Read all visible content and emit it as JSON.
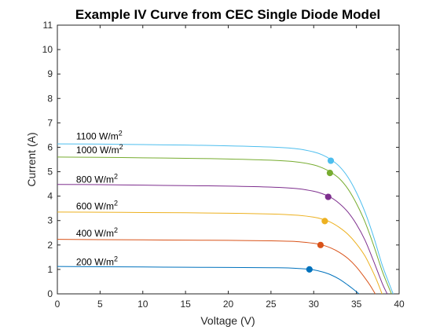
{
  "chart_data": {
    "type": "line",
    "title": "Example IV Curve from CEC Single Diode Model",
    "xlabel": "Voltage (V)",
    "ylabel": "Current (A)",
    "xlim": [
      0,
      40
    ],
    "ylim": [
      0,
      11
    ],
    "x_ticks": [
      "0",
      "5",
      "10",
      "15",
      "20",
      "25",
      "30",
      "35",
      "40"
    ],
    "y_ticks": [
      "0",
      "1",
      "2",
      "3",
      "4",
      "5",
      "6",
      "7",
      "8",
      "9",
      "10",
      "11"
    ],
    "grid": false,
    "series": [
      {
        "color": "#0072BD",
        "isc": 1.12,
        "voc": 35.3,
        "x": [
          0,
          5,
          10,
          15,
          20,
          25,
          27,
          29,
          30,
          31,
          32,
          33,
          34,
          34.6,
          35.3
        ],
        "y": [
          1.12,
          1.11,
          1.1,
          1.09,
          1.08,
          1.07,
          1.06,
          1.02,
          0.98,
          0.9,
          0.78,
          0.6,
          0.36,
          0.2,
          0
        ],
        "mpp": {
          "v": 29.5,
          "i": 1.0
        },
        "annotation": {
          "label": "200 W/m",
          "sup": "2",
          "x": 2.2,
          "y": 1.18
        }
      },
      {
        "color": "#D95319",
        "isc": 2.23,
        "voc": 37.2,
        "x": [
          0,
          5,
          10,
          15,
          20,
          25,
          28,
          30,
          31,
          32,
          33,
          34,
          35,
          36,
          36.6,
          37.2
        ],
        "y": [
          2.23,
          2.22,
          2.21,
          2.2,
          2.19,
          2.17,
          2.14,
          2.07,
          2.0,
          1.88,
          1.7,
          1.45,
          1.1,
          0.65,
          0.35,
          0
        ],
        "mpp": {
          "v": 30.8,
          "i": 2.0
        },
        "annotation": {
          "label": "400 W/m",
          "sup": "2",
          "x": 2.2,
          "y": 2.35
        }
      },
      {
        "color": "#EDB120",
        "isc": 3.35,
        "voc": 38.0,
        "x": [
          0,
          5,
          10,
          15,
          20,
          25,
          28,
          30,
          31,
          32,
          33,
          34,
          35,
          36,
          37,
          37.5,
          38.0
        ],
        "y": [
          3.35,
          3.34,
          3.33,
          3.32,
          3.3,
          3.27,
          3.22,
          3.14,
          3.06,
          2.93,
          2.72,
          2.44,
          2.05,
          1.55,
          0.85,
          0.45,
          0
        ],
        "mpp": {
          "v": 31.3,
          "i": 2.98
        },
        "annotation": {
          "label": "600 W/m",
          "sup": "2",
          "x": 2.2,
          "y": 3.45
        }
      },
      {
        "color": "#7E2F8E",
        "isc": 4.48,
        "voc": 38.6,
        "x": [
          0,
          5,
          10,
          15,
          20,
          25,
          28,
          30,
          31,
          32,
          33,
          34,
          35,
          36,
          37,
          38,
          38.6
        ],
        "y": [
          4.48,
          4.47,
          4.45,
          4.43,
          4.41,
          4.37,
          4.31,
          4.2,
          4.1,
          3.95,
          3.7,
          3.35,
          2.85,
          2.2,
          1.35,
          0.45,
          0
        ],
        "mpp": {
          "v": 31.7,
          "i": 3.97
        },
        "annotation": {
          "label": "800 W/m",
          "sup": "2",
          "x": 2.2,
          "y": 4.55
        }
      },
      {
        "color": "#77AC30",
        "isc": 5.6,
        "voc": 39.1,
        "x": [
          0,
          5,
          10,
          15,
          20,
          25,
          28,
          30,
          31,
          32,
          33,
          34,
          35,
          36,
          37,
          38,
          38.6,
          39.1
        ],
        "y": [
          5.6,
          5.59,
          5.57,
          5.55,
          5.52,
          5.47,
          5.4,
          5.28,
          5.16,
          4.98,
          4.72,
          4.3,
          3.7,
          2.95,
          2.0,
          0.95,
          0.42,
          0
        ],
        "mpp": {
          "v": 31.9,
          "i": 4.95
        },
        "annotation": {
          "label": "1000 W/m",
          "sup": "2",
          "x": 2.2,
          "y": 5.75
        }
      },
      {
        "color": "#4DBEEE",
        "isc": 6.14,
        "voc": 39.3,
        "x": [
          0,
          5,
          10,
          15,
          20,
          25,
          28,
          30,
          31,
          32,
          33,
          34,
          35,
          36,
          37,
          38,
          38.8,
          39.3
        ],
        "y": [
          6.14,
          6.13,
          6.11,
          6.09,
          6.06,
          6.01,
          5.94,
          5.81,
          5.69,
          5.5,
          5.22,
          4.78,
          4.15,
          3.35,
          2.35,
          1.2,
          0.45,
          0
        ],
        "mpp": {
          "v": 32.0,
          "i": 5.45
        },
        "annotation": {
          "label": "1100 W/m",
          "sup": "2",
          "x": 2.2,
          "y": 6.32
        }
      }
    ]
  }
}
